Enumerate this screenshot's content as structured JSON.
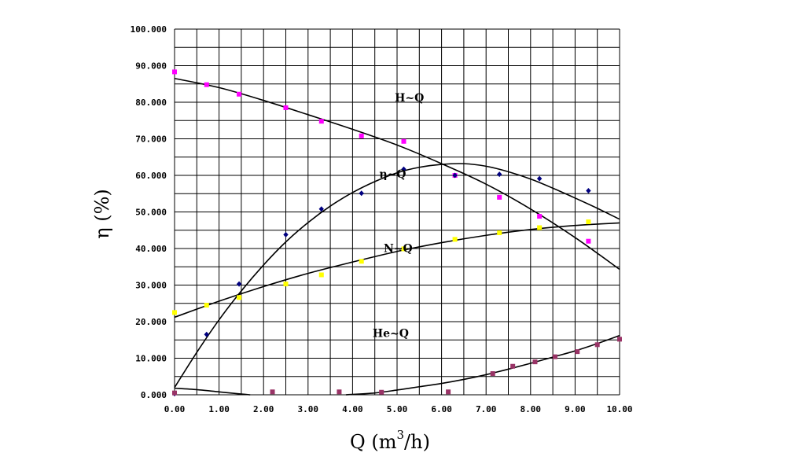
{
  "chart_data": {
    "type": "scatter",
    "title": "",
    "xlabel_parts": {
      "main": "Q (m",
      "sup": "3",
      "tail": "/h)"
    },
    "ylabel": "η (%)",
    "xlim": [
      0,
      10
    ],
    "ylim": [
      0,
      100
    ],
    "grid": true,
    "x_ticks": [
      "0.00",
      "1.00",
      "2.00",
      "3.00",
      "4.00",
      "5.00",
      "6.00",
      "7.00",
      "8.00",
      "9.00",
      "10.00"
    ],
    "y_ticks": [
      "0.000",
      "10.000",
      "20.000",
      "30.000",
      "40.000",
      "50.000",
      "60.000",
      "70.000",
      "80.000",
      "90.000",
      "100.000"
    ],
    "series": [
      {
        "name": "H~Q",
        "color": "#ff00ff",
        "marker": "square",
        "points": [
          [
            0.0,
            88.3
          ],
          [
            0.72,
            84.8
          ],
          [
            1.45,
            82.2
          ],
          [
            2.5,
            78.5
          ],
          [
            3.3,
            74.8
          ],
          [
            4.2,
            70.8
          ],
          [
            5.15,
            69.3
          ],
          [
            6.3,
            60.0
          ],
          [
            7.3,
            54.0
          ],
          [
            8.2,
            48.8
          ],
          [
            9.3,
            42.0
          ]
        ],
        "fit": [
          [
            0,
            86.5
          ],
          [
            1,
            84.0
          ],
          [
            2,
            80.5
          ],
          [
            3,
            76.6
          ],
          [
            4,
            72.6
          ],
          [
            5,
            68.3
          ],
          [
            6,
            63.2
          ],
          [
            7,
            57.6
          ],
          [
            8,
            50.8
          ],
          [
            9,
            43.0
          ],
          [
            10,
            34.3
          ]
        ],
        "label_text": "H~Q",
        "label_at": [
          4.95,
          80.2
        ]
      },
      {
        "name": "η~Q",
        "color": "#000080",
        "marker": "diamond",
        "points": [
          [
            0.0,
            0.3
          ],
          [
            0.72,
            16.5
          ],
          [
            1.45,
            30.3
          ],
          [
            2.5,
            43.8
          ],
          [
            3.3,
            50.8
          ],
          [
            4.2,
            55.1
          ],
          [
            5.15,
            61.7
          ],
          [
            6.3,
            60.0
          ],
          [
            7.3,
            60.3
          ],
          [
            8.2,
            59.1
          ],
          [
            9.3,
            55.8
          ]
        ],
        "fit": [
          [
            0,
            2.0
          ],
          [
            0.5,
            11.6
          ],
          [
            1,
            20.5
          ],
          [
            1.5,
            28.4
          ],
          [
            2,
            35.5
          ],
          [
            2.5,
            41.8
          ],
          [
            3,
            47.1
          ],
          [
            3.5,
            51.6
          ],
          [
            4,
            55.3
          ],
          [
            4.5,
            58.3
          ],
          [
            5,
            60.7
          ],
          [
            5.5,
            62.2
          ],
          [
            6,
            63.0
          ],
          [
            6.5,
            63.2
          ],
          [
            7,
            62.5
          ],
          [
            7.5,
            61.0
          ],
          [
            8,
            59.0
          ],
          [
            8.5,
            56.5
          ],
          [
            9,
            53.8
          ],
          [
            9.5,
            51.0
          ],
          [
            10,
            48.0
          ]
        ],
        "label_text": "η~Q",
        "label_at": [
          4.6,
          59.4
        ]
      },
      {
        "name": "N~Q",
        "color": "#ffff00",
        "marker": "square",
        "points": [
          [
            0.0,
            22.5
          ],
          [
            0.72,
            24.5
          ],
          [
            1.45,
            26.6
          ],
          [
            2.5,
            30.3
          ],
          [
            3.3,
            32.8
          ],
          [
            4.2,
            36.5
          ],
          [
            5.15,
            39.9
          ],
          [
            6.3,
            42.5
          ],
          [
            7.3,
            44.3
          ],
          [
            8.2,
            45.7
          ],
          [
            9.3,
            47.3
          ]
        ],
        "fit": [
          [
            0,
            21.2
          ],
          [
            1,
            25.6
          ],
          [
            2,
            29.6
          ],
          [
            3,
            33.2
          ],
          [
            4,
            36.3
          ],
          [
            5,
            39.2
          ],
          [
            6,
            41.6
          ],
          [
            7,
            43.6
          ],
          [
            8,
            45.2
          ],
          [
            9,
            46.3
          ],
          [
            10,
            47.0
          ]
        ],
        "label_text": "N~Q",
        "label_at": [
          4.7,
          39.0
        ]
      },
      {
        "name": "He~Q",
        "color": "#993366",
        "marker": "square",
        "points": [
          [
            0.0,
            0.5
          ],
          [
            2.2,
            0.8
          ],
          [
            3.7,
            0.8
          ],
          [
            4.65,
            0.7
          ],
          [
            6.15,
            0.8
          ],
          [
            7.15,
            5.8
          ],
          [
            7.6,
            7.8
          ],
          [
            8.1,
            9.0
          ],
          [
            8.55,
            10.4
          ],
          [
            9.05,
            11.8
          ],
          [
            9.5,
            13.7
          ],
          [
            10.0,
            15.2
          ]
        ],
        "fit": [
          [
            0,
            1.8
          ],
          [
            0.5,
            1.4
          ],
          [
            1,
            0.8
          ],
          [
            1.5,
            0.2
          ],
          [
            1.7,
            0.0
          ]
        ],
        "fit2": [
          [
            3.85,
            0.0
          ],
          [
            4.5,
            0.5
          ],
          [
            5,
            1.3
          ],
          [
            5.5,
            2.2
          ],
          [
            6,
            3.1
          ],
          [
            6.5,
            4.2
          ],
          [
            7,
            5.5
          ],
          [
            7.5,
            7.0
          ],
          [
            8,
            8.6
          ],
          [
            8.5,
            10.3
          ],
          [
            9,
            12.0
          ],
          [
            9.5,
            14.0
          ],
          [
            10,
            16.2
          ]
        ],
        "label_text": "He~Q",
        "label_at": [
          4.45,
          15.8
        ]
      }
    ]
  }
}
